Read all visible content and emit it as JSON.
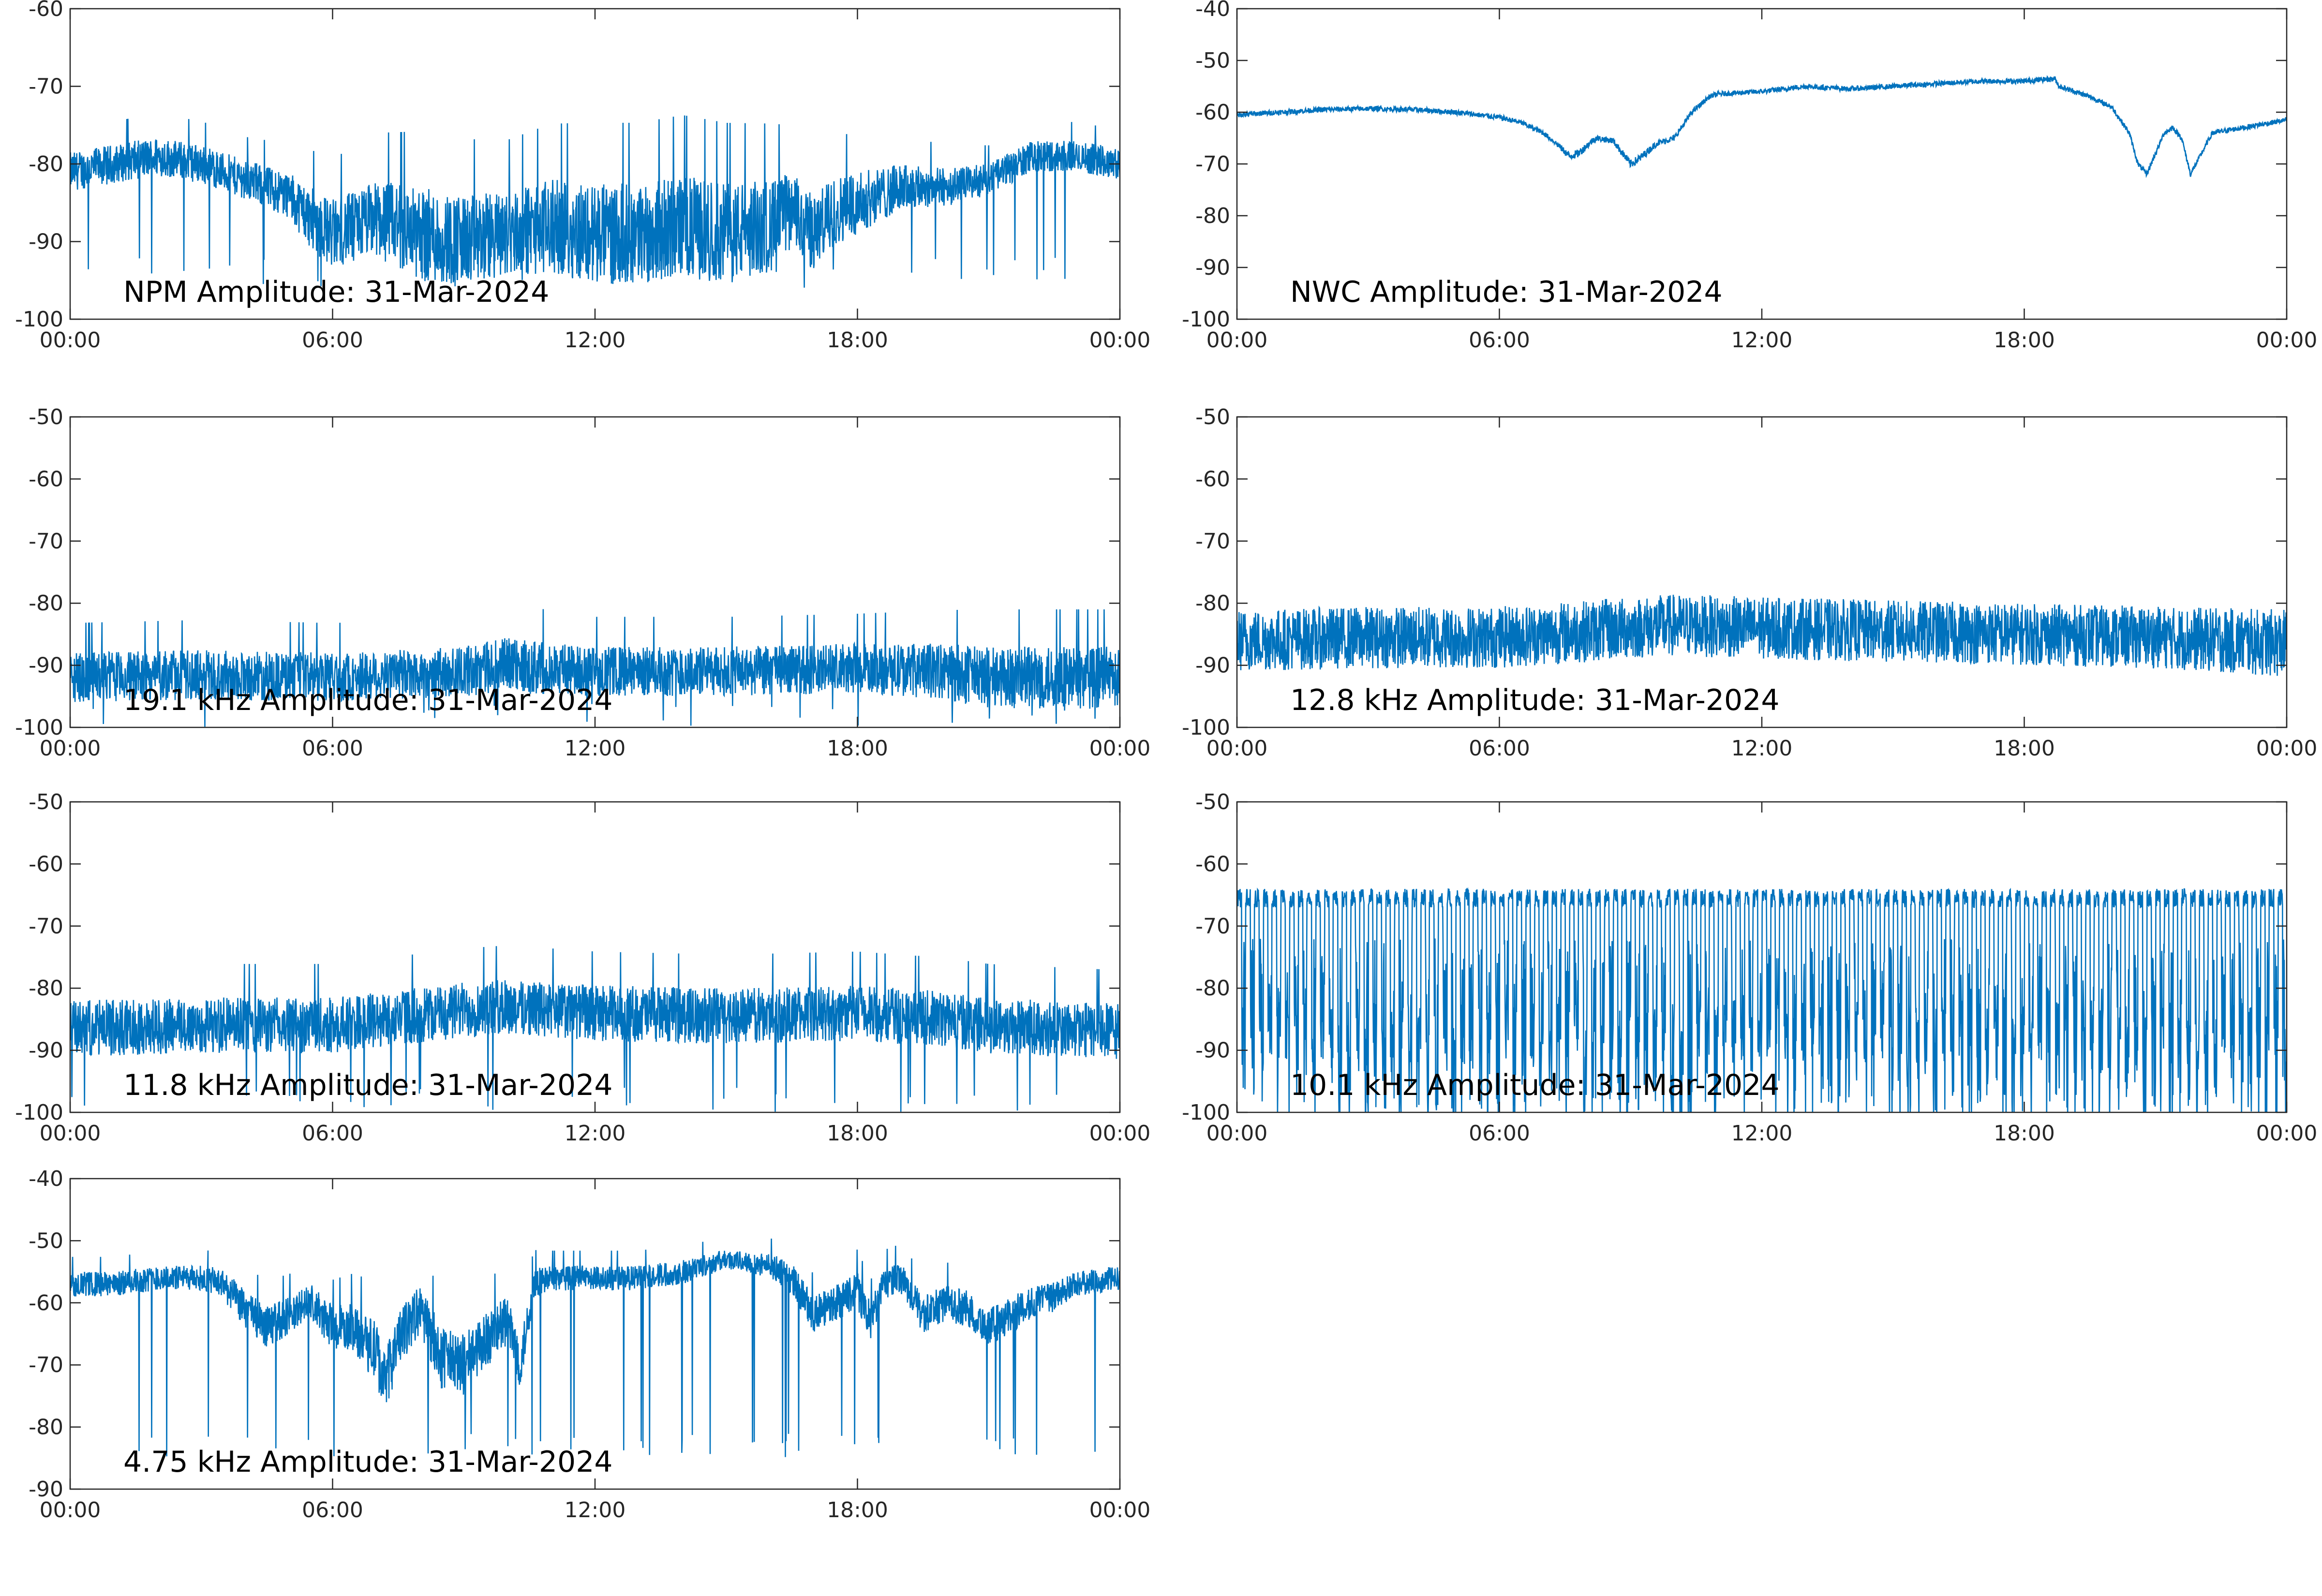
{
  "colors": {
    "series": "#0072BD",
    "axis": "#262626",
    "background": "#ffffff"
  },
  "x_tick_labels": [
    "00:00",
    "06:00",
    "12:00",
    "18:00",
    "00:00"
  ],
  "chart_data": [
    {
      "type": "line",
      "title": "NPM Amplitude: 31-Mar-2024",
      "xlabel": "",
      "ylabel": "",
      "xlim": [
        0,
        24
      ],
      "ylim": [
        -100,
        -60
      ],
      "yticks": [
        "-60",
        "-70",
        "-80",
        "-90",
        "-100"
      ],
      "grid": false,
      "legend": "none",
      "x": [
        0,
        1,
        2,
        3,
        4,
        5,
        5.5,
        6,
        6.5,
        7,
        8,
        9,
        10,
        11,
        12,
        13,
        14,
        15,
        16,
        16.5,
        17,
        17.5,
        18,
        19,
        20,
        21,
        22,
        23,
        24
      ],
      "y": [
        -81,
        -80,
        -79,
        -80,
        -82,
        -84,
        -87,
        -89,
        -88,
        -87,
        -89,
        -90,
        -89,
        -88,
        -89,
        -89,
        -88,
        -89,
        -88,
        -86,
        -89,
        -86,
        -85,
        -83,
        -83,
        -82,
        -79,
        -79,
        -80
      ],
      "noise": [
        2.5,
        2.5,
        2.5,
        2.5,
        2.5,
        3,
        4,
        4.5,
        4.5,
        5,
        6,
        6,
        5.5,
        6,
        6.5,
        6.5,
        6.5,
        6.5,
        6,
        5,
        5,
        4.5,
        4,
        3,
        2.5,
        2,
        2,
        2,
        2
      ],
      "spikes": -96
    },
    {
      "type": "line",
      "title": "NWC Amplitude: 31-Mar-2024",
      "xlabel": "",
      "ylabel": "",
      "xlim": [
        0,
        24
      ],
      "ylim": [
        -100,
        -40
      ],
      "yticks": [
        "-40",
        "-50",
        "-60",
        "-70",
        "-80",
        "-90",
        "-100"
      ],
      "grid": false,
      "legend": "none",
      "x": [
        0,
        1,
        2,
        3,
        4,
        5,
        6,
        6.5,
        7,
        7.3,
        7.6,
        7.8,
        8.2,
        8.6,
        9,
        9.2,
        9.6,
        10,
        10.4,
        10.8,
        11,
        12,
        13,
        14,
        15,
        16,
        17,
        18,
        18.7,
        18.8,
        19.5,
        20,
        20.4,
        20.6,
        20.8,
        21.2,
        21.4,
        21.6,
        21.8,
        22.3,
        23,
        24
      ],
      "y": [
        -60.5,
        -60,
        -59.5,
        -59.3,
        -59.5,
        -60,
        -61,
        -62,
        -64,
        -66,
        -68.5,
        -68,
        -65,
        -65.5,
        -70,
        -69,
        -66,
        -65,
        -60,
        -57,
        -56.5,
        -56,
        -55,
        -55.5,
        -55,
        -54.5,
        -54,
        -54,
        -53.5,
        -55,
        -57,
        -59,
        -64,
        -70,
        -72,
        -64,
        -63,
        -65,
        -72,
        -64,
        -63,
        -61.5
      ],
      "noise": [
        0.5,
        0.5,
        0.5,
        0.5,
        0.5,
        0.5,
        0.5,
        0.5,
        0.5,
        0.5,
        0.8,
        0.8,
        0.6,
        0.6,
        0.8,
        0.8,
        0.6,
        0.6,
        0.5,
        0.5,
        0.5,
        0.5,
        0.5,
        0.5,
        0.5,
        0.5,
        0.5,
        0.5,
        0.5,
        0.5,
        0.5,
        0.5,
        0.5,
        0.5,
        0.5,
        0.5,
        0.5,
        0.5,
        0.5,
        0.5,
        0.5,
        0.5
      ],
      "spikes": null
    },
    {
      "type": "line",
      "title": "19.1 kHz Amplitude: 31-Mar-2024",
      "xlabel": "",
      "ylabel": "",
      "xlim": [
        0,
        24
      ],
      "ylim": [
        -100,
        -50
      ],
      "yticks": [
        "-50",
        "-60",
        "-70",
        "-80",
        "-90",
        "-100"
      ],
      "grid": false,
      "legend": "none",
      "x": [
        0,
        3,
        6,
        9,
        10,
        12,
        15,
        18,
        20,
        21,
        22,
        23,
        24
      ],
      "y": [
        -92,
        -91.5,
        -92,
        -91,
        -90,
        -91,
        -91,
        -90.5,
        -91,
        -92,
        -92,
        -92,
        -92
      ],
      "noise": [
        4,
        4,
        4,
        4,
        4.5,
        4,
        4,
        4,
        4.5,
        5,
        5,
        5,
        5
      ],
      "spikes": -100
    },
    {
      "type": "line",
      "title": "12.8 kHz Amplitude: 31-Mar-2024",
      "xlabel": "",
      "ylabel": "",
      "xlim": [
        0,
        24
      ],
      "ylim": [
        -100,
        -50
      ],
      "yticks": [
        "-50",
        "-60",
        "-70",
        "-80",
        "-90",
        "-100"
      ],
      "grid": false,
      "legend": "none",
      "x": [
        0,
        3,
        6,
        9,
        10,
        12,
        15,
        18,
        21,
        24
      ],
      "y": [
        -86,
        -85.5,
        -85.5,
        -84,
        -83.5,
        -84,
        -84.5,
        -85,
        -85.5,
        -86.5
      ],
      "noise": [
        5,
        5,
        5,
        5,
        5,
        5,
        5,
        5,
        5,
        5.5
      ],
      "spikes": null
    },
    {
      "type": "line",
      "title": "11.8 kHz Amplitude: 31-Mar-2024",
      "xlabel": "",
      "ylabel": "",
      "xlim": [
        0,
        24
      ],
      "ylim": [
        -100,
        -50
      ],
      "yticks": [
        "-50",
        "-60",
        "-70",
        "-80",
        "-90",
        "-100"
      ],
      "grid": false,
      "legend": "none",
      "x": [
        0,
        3,
        6,
        9,
        10,
        12,
        15,
        18,
        20,
        21,
        24
      ],
      "y": [
        -86.5,
        -86,
        -86,
        -83.5,
        -83,
        -84,
        -84.5,
        -84,
        -85,
        -86,
        -87
      ],
      "noise": [
        4.5,
        4.5,
        4.5,
        4.5,
        4.5,
        4.5,
        4.5,
        4.5,
        4.5,
        4.5,
        4.5
      ],
      "spikes": -100
    },
    {
      "type": "line",
      "title": "10.1 kHz Amplitude: 31-Mar-2024",
      "xlabel": "",
      "ylabel": "",
      "xlim": [
        0,
        24
      ],
      "ylim": [
        -100,
        -50
      ],
      "yticks": [
        "-50",
        "-60",
        "-70",
        "-80",
        "-90",
        "-100"
      ],
      "grid": false,
      "legend": "none",
      "x": [
        0,
        6,
        12,
        18,
        24
      ],
      "y": [
        -72,
        -71,
        -71,
        -71,
        -71
      ],
      "noise": [
        7,
        7,
        7,
        7,
        7
      ],
      "spikes": -100,
      "periodic": 0.2
    },
    {
      "type": "line",
      "title": "4.75 kHz Amplitude: 31-Mar-2024",
      "xlabel": "",
      "ylabel": "",
      "xlim": [
        0,
        24
      ],
      "ylim": [
        -90,
        -40
      ],
      "yticks": [
        "-40",
        "-50",
        "-60",
        "-70",
        "-80",
        "-90"
      ],
      "grid": false,
      "legend": "none",
      "x": [
        0,
        1,
        2,
        3,
        3.5,
        4,
        4.5,
        5,
        5.5,
        6,
        6.5,
        7,
        7.2,
        7.5,
        8,
        8.5,
        9,
        9.5,
        10,
        10.3,
        10.6,
        11,
        12,
        13,
        14,
        15,
        16,
        16.5,
        17,
        17.5,
        18,
        18.3,
        18.6,
        19,
        19.5,
        20,
        20.5,
        21,
        21.5,
        22,
        22.5,
        23,
        24
      ],
      "y": [
        -57,
        -57,
        -56,
        -56,
        -57,
        -61,
        -64,
        -62,
        -60,
        -64,
        -64,
        -68,
        -73,
        -66,
        -61,
        -69,
        -70,
        -66,
        -63,
        -70,
        -57,
        -56,
        -56,
        -56,
        -55,
        -53,
        -54,
        -56,
        -62,
        -60,
        -58,
        -63,
        -57,
        -56,
        -62,
        -60,
        -61,
        -64,
        -62,
        -60,
        -59,
        -57,
        -56
      ],
      "noise": [
        2,
        2,
        2,
        2,
        2.5,
        3,
        3.5,
        3,
        3,
        3.5,
        4,
        5,
        5,
        4.5,
        4,
        5,
        5,
        4.5,
        4,
        4,
        2.5,
        2,
        2,
        2,
        2,
        1.5,
        2,
        2.5,
        3,
        3,
        3,
        3,
        2.5,
        2.5,
        3,
        3,
        3,
        3,
        3,
        2.5,
        2.5,
        2,
        2
      ],
      "spikes": -85
    }
  ]
}
